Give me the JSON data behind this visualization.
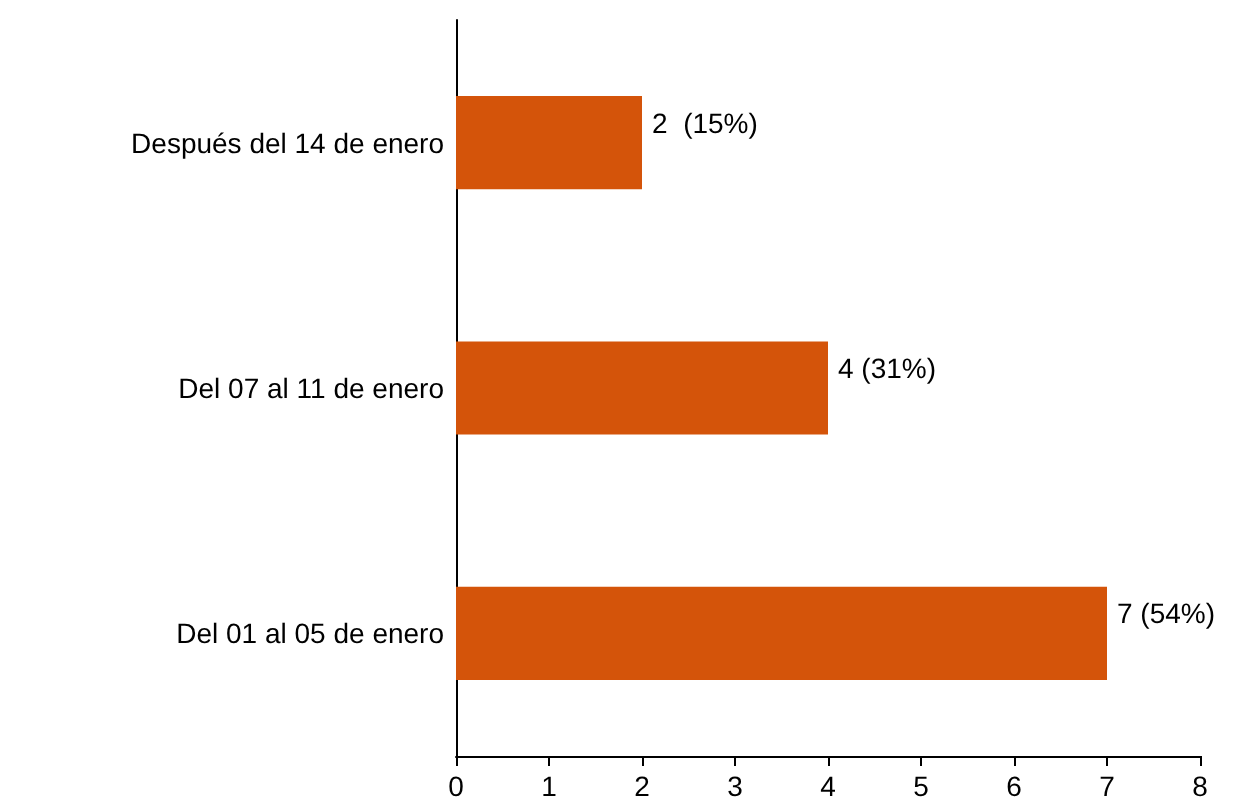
{
  "chart_data": {
    "type": "bar",
    "orientation": "horizontal",
    "categories": [
      "Después del 14 de enero",
      "Del 07 al 11 de enero",
      "Del 01 al 05 de enero"
    ],
    "values": [
      2,
      4,
      7
    ],
    "value_labels": [
      "2  (15%)",
      "4 (31%)",
      "7 (54%)"
    ],
    "color": "#d4540a",
    "xlim": [
      0,
      8
    ],
    "xticks": [
      0,
      1,
      2,
      3,
      4,
      5,
      6,
      7,
      8
    ],
    "grid": false
  }
}
